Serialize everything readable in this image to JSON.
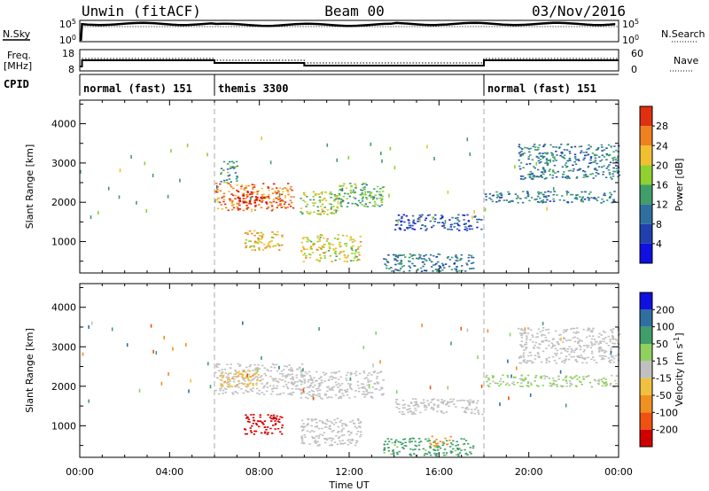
{
  "header": {
    "station": "Unwin (fitACF)",
    "beam": "Beam 00",
    "date": "03/Nov/2016"
  },
  "strip_labels": {
    "nsky": "N.Sky",
    "nsearch": "N.Search",
    "freq": "Freq.",
    "freq_unit": "[MHz]",
    "nave": "Nave",
    "cpid": "CPID",
    "nsky_ticks": [
      "10^5",
      "10^0"
    ],
    "nsearch_ticks": [
      "10^5",
      "10^0"
    ],
    "freq_ticks": [
      "18",
      "8"
    ],
    "nave_ticks": [
      "60",
      "0"
    ]
  },
  "cpid_segments": [
    {
      "label": "normal (fast) 151",
      "start_hour": 0,
      "end_hour": 6
    },
    {
      "label": "themis 3300",
      "start_hour": 6,
      "end_hour": 18
    },
    {
      "label": "normal (fast) 151",
      "start_hour": 18,
      "end_hour": 24
    }
  ],
  "chart_data": [
    {
      "type": "heatmap",
      "title": "",
      "xlabel": "Time UT",
      "ylabel": "Slant Range [km]",
      "xlim": [
        0,
        24
      ],
      "ylim": [
        200,
        4600
      ],
      "x_ticks": [
        "00:00",
        "04:00",
        "08:00",
        "12:00",
        "16:00",
        "20:00",
        "00:00"
      ],
      "y_ticks": [
        1000,
        2000,
        3000,
        4000
      ],
      "colorbar": {
        "label": "Power [dB]",
        "ticks": [
          4,
          8,
          12,
          16,
          20,
          24,
          28
        ],
        "range": [
          0,
          32
        ]
      },
      "regions": [
        {
          "t": [
            6.0,
            9.5
          ],
          "r": [
            1800,
            2500
          ],
          "value": 24
        },
        {
          "t": [
            7.0,
            8.3
          ],
          "r": [
            2000,
            2300
          ],
          "value": 28
        },
        {
          "t": [
            6.2,
            7.0
          ],
          "r": [
            2500,
            3100
          ],
          "value": 12
        },
        {
          "t": [
            7.3,
            9.0
          ],
          "r": [
            800,
            1300
          ],
          "value": 20
        },
        {
          "t": [
            9.8,
            12.5
          ],
          "r": [
            500,
            1200
          ],
          "value": 18
        },
        {
          "t": [
            9.8,
            11.5
          ],
          "r": [
            1700,
            2300
          ],
          "value": 16
        },
        {
          "t": [
            11.5,
            13.5
          ],
          "r": [
            1900,
            2500
          ],
          "value": 14
        },
        {
          "t": [
            13.5,
            17.5
          ],
          "r": [
            250,
            700
          ],
          "value": 10
        },
        {
          "t": [
            14.0,
            17.9
          ],
          "r": [
            1300,
            1700
          ],
          "value": 6
        },
        {
          "t": [
            18.0,
            24.0
          ],
          "r": [
            2000,
            2300
          ],
          "value": 10
        },
        {
          "t": [
            19.5,
            24.0
          ],
          "r": [
            2600,
            3500
          ],
          "value": 10
        }
      ]
    },
    {
      "type": "heatmap",
      "title": "",
      "xlabel": "Time UT",
      "ylabel": "Slant Range [km]",
      "xlim": [
        0,
        24
      ],
      "ylim": [
        200,
        4600
      ],
      "x_ticks": [
        "00:00",
        "04:00",
        "08:00",
        "12:00",
        "16:00",
        "20:00",
        "00:00"
      ],
      "y_ticks": [
        1000,
        2000,
        3000,
        4000
      ],
      "colorbar": {
        "label": "Velocity [m s^-1]",
        "ticks": [
          200,
          100,
          50,
          15,
          -15,
          -50,
          -100,
          -200
        ],
        "range": [
          -250,
          250
        ]
      },
      "regions": [
        {
          "t": [
            6.0,
            10.0
          ],
          "r": [
            1800,
            2600
          ],
          "value": 0
        },
        {
          "t": [
            6.2,
            8.0
          ],
          "r": [
            2000,
            2400
          ],
          "value": -40
        },
        {
          "t": [
            7.3,
            9.0
          ],
          "r": [
            800,
            1300
          ],
          "value": -220
        },
        {
          "t": [
            9.8,
            12.5
          ],
          "r": [
            500,
            1200
          ],
          "value": 0
        },
        {
          "t": [
            9.8,
            13.5
          ],
          "r": [
            1700,
            2400
          ],
          "value": 0
        },
        {
          "t": [
            13.5,
            17.5
          ],
          "r": [
            250,
            700
          ],
          "value": 60
        },
        {
          "t": [
            15.5,
            16.5
          ],
          "r": [
            500,
            750
          ],
          "value": -80
        },
        {
          "t": [
            14.0,
            17.9
          ],
          "r": [
            1300,
            1700
          ],
          "value": 0
        },
        {
          "t": [
            18.0,
            24.0
          ],
          "r": [
            2000,
            2300
          ],
          "value": 20
        },
        {
          "t": [
            19.5,
            24.0
          ],
          "r": [
            2600,
            3500
          ],
          "value": 0
        }
      ]
    }
  ],
  "colors": {
    "power": [
      "#1010e0",
      "#2040b0",
      "#2f6fa0",
      "#3f9e6a",
      "#90d030",
      "#f0c030",
      "#f08020",
      "#e03010",
      "#d00000"
    ],
    "velocity_neg": [
      "#d00000",
      "#f05010",
      "#f09020",
      "#f0c040"
    ],
    "velocity_zero": "#c0c0c0",
    "velocity_pos": [
      "#90d060",
      "#3f9e6a",
      "#2f6fa0",
      "#1010e0"
    ]
  }
}
